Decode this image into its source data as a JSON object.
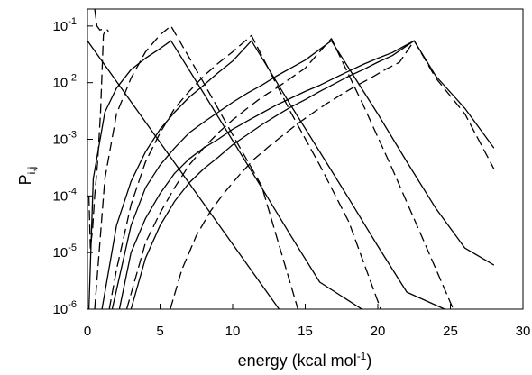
{
  "chart_data": {
    "type": "line",
    "title": "",
    "xlabel": "energy (kcal mol",
    "xlabel_sup": "-1",
    "xlabel_close": ")",
    "ylabel": "P",
    "ylabel_sub": "i,j",
    "xlim": [
      0,
      30
    ],
    "ylim_log10": [
      -6,
      -0.7
    ],
    "y_scale": "log",
    "grid": false,
    "x_ticks": [
      "0",
      "5",
      "10",
      "15",
      "20",
      "25",
      "30"
    ],
    "y_ticks": [
      {
        "base": "10",
        "exp": "-1"
      },
      {
        "base": "10",
        "exp": "-2"
      },
      {
        "base": "10",
        "exp": "-3"
      },
      {
        "base": "10",
        "exp": "-4"
      },
      {
        "base": "10",
        "exp": "-5"
      },
      {
        "base": "10",
        "exp": "-6"
      }
    ],
    "series": [
      {
        "style": "solid",
        "x": [
          0,
          13.2
        ],
        "y": [
          0.055,
          1e-06
        ]
      },
      {
        "style": "dashed",
        "x": [
          0.1,
          0.2,
          0.35,
          0.5,
          0.7,
          0.9,
          1.1,
          1.3,
          1.45
        ],
        "y": [
          0.0001,
          1.2e-05,
          2.5e-05,
          0.0001,
          0.0004,
          0.003,
          0.07,
          0.09,
          0.08
        ]
      },
      {
        "style": "dashed",
        "x": [
          0.5,
          0.65,
          0.85,
          1.2
        ],
        "y": [
          0.2,
          0.1,
          0.085,
          0.09
        ]
      },
      {
        "style": "solid",
        "x": [
          0.1,
          0.4,
          1.2,
          2.0,
          3.0,
          4.0,
          5.0,
          5.75,
          8.0,
          10.0,
          12.0,
          14.0,
          16.0,
          18.9
        ],
        "y": [
          1e-06,
          0.0002,
          0.003,
          0.008,
          0.017,
          0.027,
          0.04,
          0.055,
          0.0065,
          0.00095,
          0.00014,
          2e-05,
          3e-06,
          1e-06
        ]
      },
      {
        "style": "dashed",
        "x": [
          0.5,
          1.2,
          2.0,
          3.0,
          4.0,
          5.0,
          5.75,
          8.0,
          10.0,
          12.0,
          14.5
        ],
        "y": [
          1e-06,
          0.0002,
          0.0028,
          0.012,
          0.035,
          0.07,
          0.1,
          0.01,
          0.0012,
          0.00015,
          1e-06
        ]
      },
      {
        "style": "solid",
        "x": [
          1.0,
          2.0,
          3.0,
          4.0,
          5.0,
          6.0,
          7.0,
          8.0,
          9.0,
          10.0,
          11.3,
          14.0,
          16.0,
          18.0,
          20.0,
          22.0,
          24.6
        ],
        "y": [
          1e-06,
          3e-05,
          0.00018,
          0.0006,
          0.0015,
          0.003,
          0.0055,
          0.009,
          0.015,
          0.024,
          0.055,
          0.004,
          0.0006,
          9e-05,
          1.3e-05,
          2e-06,
          1e-06
        ]
      },
      {
        "style": "dashed",
        "x": [
          1.5,
          2.0,
          3.0,
          4.0,
          5.0,
          6.0,
          7.0,
          8.0,
          9.0,
          10.0,
          11.3,
          14.0,
          16.0,
          18.0,
          20.2
        ],
        "y": [
          1e-06,
          5e-06,
          7e-05,
          0.0004,
          0.0013,
          0.0035,
          0.007,
          0.013,
          0.022,
          0.035,
          0.068,
          0.003,
          0.00035,
          3.5e-05,
          1e-06
        ]
      },
      {
        "style": "solid",
        "x": [
          1.7,
          3.0,
          4.0,
          5.0,
          6.0,
          7.0,
          8.0,
          9.0,
          10.0,
          11.0,
          12.0,
          13.0,
          14.0,
          15.0,
          16.8,
          20.0,
          22.0,
          24.0,
          26.0,
          28.0
        ],
        "y": [
          1e-06,
          3e-05,
          0.00014,
          0.00035,
          0.0007,
          0.0013,
          0.002,
          0.003,
          0.0045,
          0.0065,
          0.009,
          0.013,
          0.018,
          0.025,
          0.055,
          0.0028,
          0.0004,
          6e-05,
          1.2e-05,
          6e-06
        ]
      },
      {
        "style": "dashed",
        "x": [
          2.7,
          4.0,
          5.0,
          6.0,
          7.0,
          8.0,
          9.0,
          10.0,
          11.0,
          12.0,
          13.0,
          14.0,
          15.0,
          16.8,
          19.0,
          21.0,
          23.0,
          25.2
        ],
        "y": [
          1e-06,
          1.5e-05,
          5e-05,
          0.00014,
          0.00035,
          0.0007,
          0.0013,
          0.0022,
          0.0035,
          0.0055,
          0.008,
          0.012,
          0.018,
          0.06,
          0.004,
          0.0003,
          2e-05,
          1e-06
        ]
      },
      {
        "style": "solid",
        "x": [
          2.2,
          3.0,
          4.0,
          5.0,
          6.0,
          7.0,
          8.0,
          9.0,
          10.0,
          11.0,
          12.0,
          13.0,
          14.0,
          15.0,
          16.0,
          17.0,
          18.0,
          19.0,
          20.0,
          21.0,
          22.5,
          24.0,
          26.0,
          28.0
        ],
        "y": [
          1e-06,
          1e-05,
          4e-05,
          0.00011,
          0.00025,
          0.00045,
          0.0007,
          0.001,
          0.0015,
          0.0021,
          0.0029,
          0.004,
          0.0053,
          0.007,
          0.009,
          0.012,
          0.016,
          0.021,
          0.027,
          0.034,
          0.055,
          0.013,
          0.0035,
          0.0007
        ]
      },
      {
        "style": "solid",
        "x": [
          3.0,
          4.0,
          5.0,
          6.0,
          7.0,
          8.0,
          9.0,
          10.0,
          11.0,
          12.0,
          13.0,
          14.0,
          15.0,
          16.0,
          17.0,
          18.0,
          19.0,
          20.0,
          21.0,
          22.5
        ],
        "y": [
          1e-06,
          8e-06,
          3e-05,
          8e-05,
          0.00017,
          0.0003,
          0.00048,
          0.0008,
          0.0012,
          0.0018,
          0.0026,
          0.0037,
          0.005,
          0.007,
          0.0095,
          0.013,
          0.017,
          0.023,
          0.03,
          0.055
        ]
      },
      {
        "style": "dashed",
        "x": [
          5.7,
          6.5,
          7.5,
          8.5,
          9.5,
          10.5,
          11.5,
          12.5,
          13.5,
          14.5,
          15.5,
          16.5,
          17.5,
          18.5,
          19.5,
          20.5,
          21.5,
          22.5,
          24.0,
          26.0,
          28.0
        ],
        "y": [
          1e-06,
          5e-06,
          2e-05,
          5.5e-05,
          0.00012,
          0.00024,
          0.00045,
          0.00075,
          0.0012,
          0.0019,
          0.0029,
          0.0043,
          0.0062,
          0.0088,
          0.012,
          0.017,
          0.023,
          0.055,
          0.012,
          0.0028,
          0.0003
        ]
      }
    ]
  }
}
